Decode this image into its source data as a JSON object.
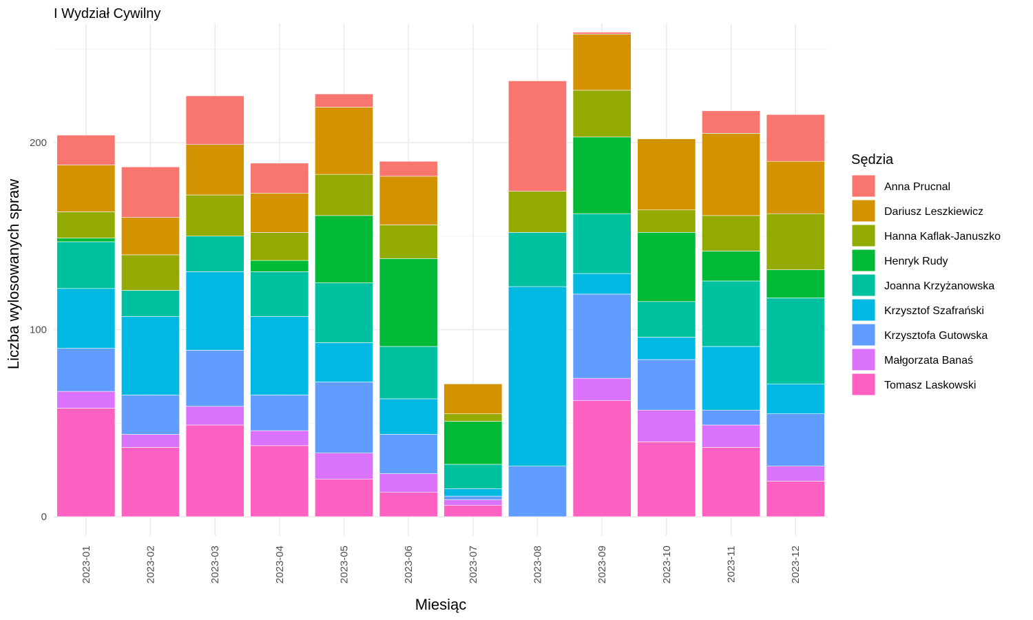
{
  "chart_data": {
    "type": "bar",
    "stacked": true,
    "title": "I Wydział Cywilny",
    "xlabel": "Miesiąc",
    "ylabel": "Liczba wylosowanych spraw",
    "ylim": [
      -10,
      260
    ],
    "yticks": [
      0,
      100,
      200
    ],
    "grid": true,
    "legend": {
      "title": "Sędzia",
      "position": "right"
    },
    "categories": [
      "2023-01",
      "2023-02",
      "2023-03",
      "2023-04",
      "2023-05",
      "2023-06",
      "2023-07",
      "2023-08",
      "2023-09",
      "2023-10",
      "2023-11",
      "2023-12"
    ],
    "series": [
      {
        "name": "Tomasz Laskowski",
        "color": "#FF61C3",
        "values": [
          58,
          37,
          49,
          38,
          20,
          13,
          6,
          0,
          62,
          40,
          37,
          19
        ]
      },
      {
        "name": "Małgorzata Banaś",
        "color": "#DB72FB",
        "values": [
          9,
          7,
          10,
          8,
          14,
          10,
          3,
          0,
          12,
          17,
          12,
          8
        ]
      },
      {
        "name": "Krzysztofa Gutowska",
        "color": "#619CFF",
        "values": [
          23,
          21,
          30,
          19,
          38,
          21,
          2,
          27,
          45,
          27,
          8,
          28
        ]
      },
      {
        "name": "Krzysztof Szafrański",
        "color": "#00B9E3",
        "values": [
          32,
          42,
          42,
          42,
          21,
          19,
          4,
          96,
          11,
          12,
          34,
          16
        ]
      },
      {
        "name": "Joanna Krzyżanowska",
        "color": "#00C19F",
        "values": [
          25,
          14,
          19,
          24,
          32,
          28,
          13,
          29,
          32,
          19,
          35,
          46
        ]
      },
      {
        "name": "Henryk Rudy",
        "color": "#00BA38",
        "values": [
          2,
          0,
          0,
          6,
          36,
          47,
          23,
          0,
          41,
          37,
          16,
          15
        ]
      },
      {
        "name": "Hanna Kaflak-Januszko",
        "color": "#93AA00",
        "values": [
          14,
          19,
          22,
          15,
          22,
          18,
          4,
          22,
          25,
          12,
          19,
          30
        ]
      },
      {
        "name": "Dariusz Leszkiewicz",
        "color": "#D39200",
        "values": [
          25,
          20,
          27,
          21,
          36,
          26,
          16,
          0,
          30,
          38,
          44,
          28
        ]
      },
      {
        "name": "Anna Prucnal",
        "color": "#F8766D",
        "values": [
          16,
          27,
          26,
          16,
          7,
          8,
          0,
          59,
          1,
          0,
          12,
          25
        ]
      }
    ],
    "legend_order": [
      "Anna Prucnal",
      "Dariusz Leszkiewicz",
      "Hanna Kaflak-Januszko",
      "Henryk Rudy",
      "Joanna Krzyżanowska",
      "Krzysztof Szafrański",
      "Krzysztofa Gutowska",
      "Małgorzata Banaś",
      "Tomasz Laskowski"
    ]
  }
}
